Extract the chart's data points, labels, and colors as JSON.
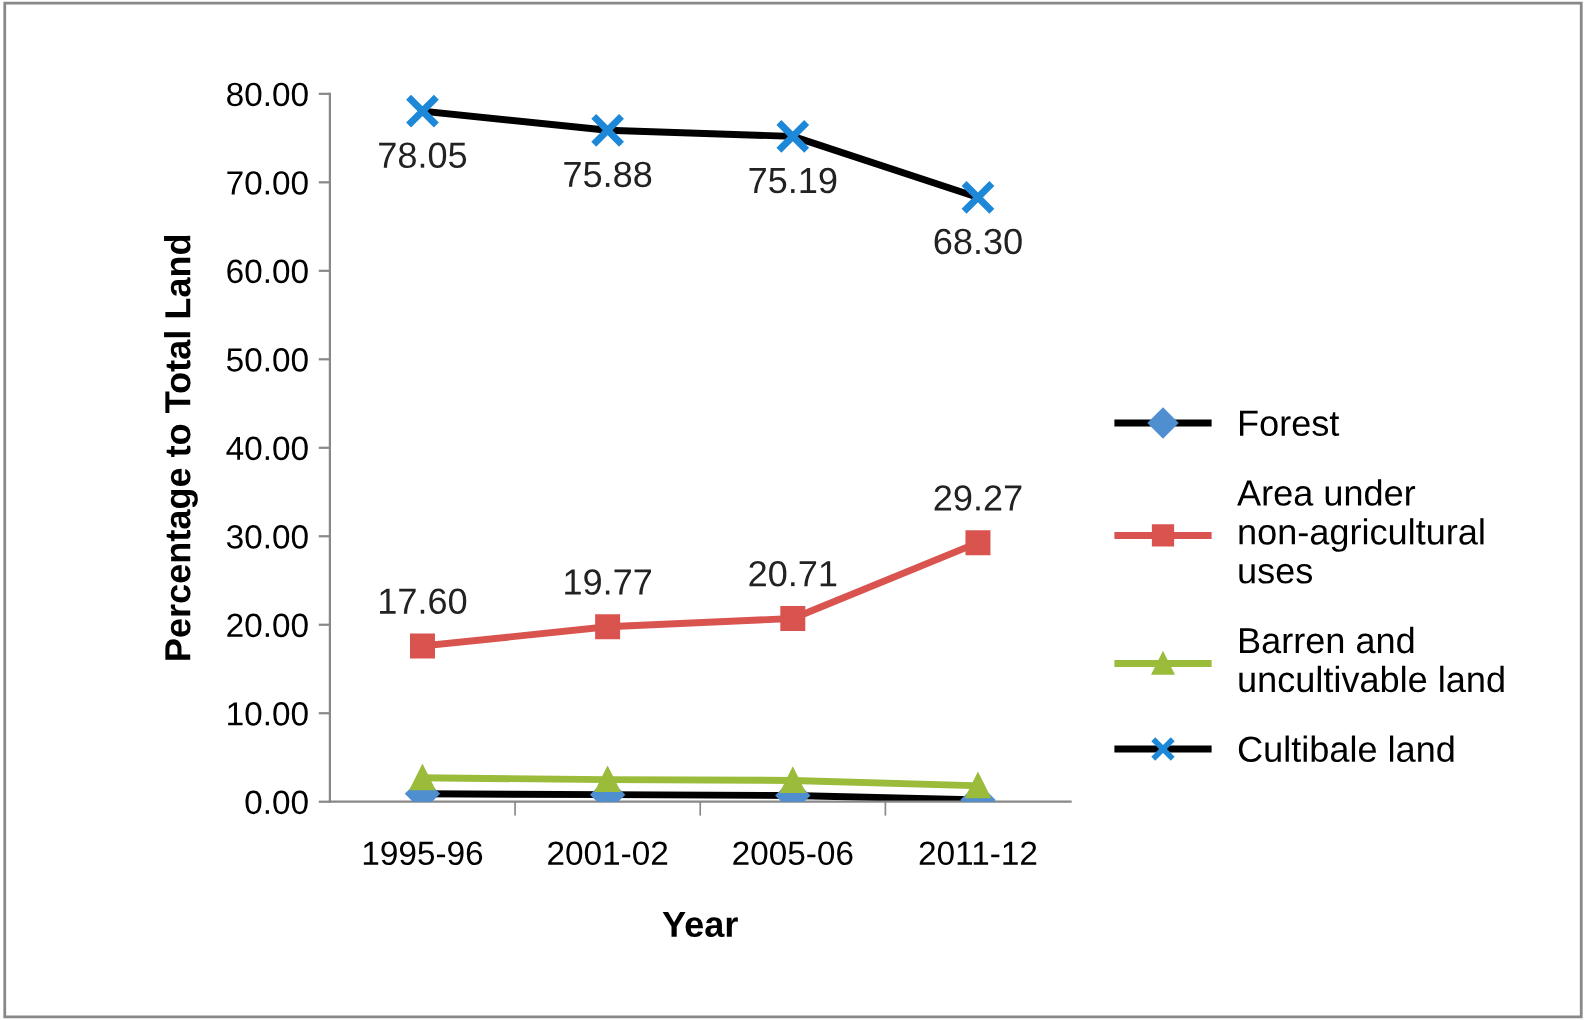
{
  "chart_data": {
    "type": "line",
    "xlabel": "Year",
    "ylabel": "Percentage to Total Land",
    "categories": [
      "1995-96",
      "2001-02",
      "2005-06",
      "2011-12"
    ],
    "ylim": [
      0,
      80
    ],
    "yticks": [
      {
        "value": 0,
        "label": "0.00"
      },
      {
        "value": 10,
        "label": "10.00"
      },
      {
        "value": 20,
        "label": "20.00"
      },
      {
        "value": 30,
        "label": "30.00"
      },
      {
        "value": 40,
        "label": "40.00"
      },
      {
        "value": 50,
        "label": "50.00"
      },
      {
        "value": 60,
        "label": "60.00"
      },
      {
        "value": 70,
        "label": "70.00"
      },
      {
        "value": 80,
        "label": "80.00"
      }
    ],
    "grid": false,
    "legend": "right",
    "line_style": "solid",
    "series": [
      {
        "name": "Forest",
        "color": "#000000",
        "colors": [
          "#4f8fd0",
          "#4f8fd0",
          "#4f8fd0",
          "#4f8fd0"
        ],
        "marker": "diamond",
        "values": [
          0.9,
          0.8,
          0.7,
          0.2
        ]
      },
      {
        "name": "Area under non-agricultural uses",
        "color": "#d9534f",
        "marker": "square",
        "values": [
          17.6,
          19.77,
          20.71,
          29.27
        ],
        "value_labels": [
          "17.60",
          "19.77",
          "20.71",
          "29.27"
        ]
      },
      {
        "name": "Barren and uncultivable land",
        "color": "#9bbb3b",
        "marker": "triangle",
        "values": [
          2.7,
          2.5,
          2.4,
          1.8
        ]
      },
      {
        "name": "Cultibale land",
        "color": "#000000",
        "colors": [
          "#1e88d8",
          "#1e88d8",
          "#1e88d8",
          "#1e88d8"
        ],
        "marker": "cross",
        "values": [
          78.05,
          75.88,
          75.19,
          68.3
        ],
        "value_labels": [
          "78.05",
          "75.88",
          "75.19",
          "68.30"
        ]
      }
    ]
  }
}
